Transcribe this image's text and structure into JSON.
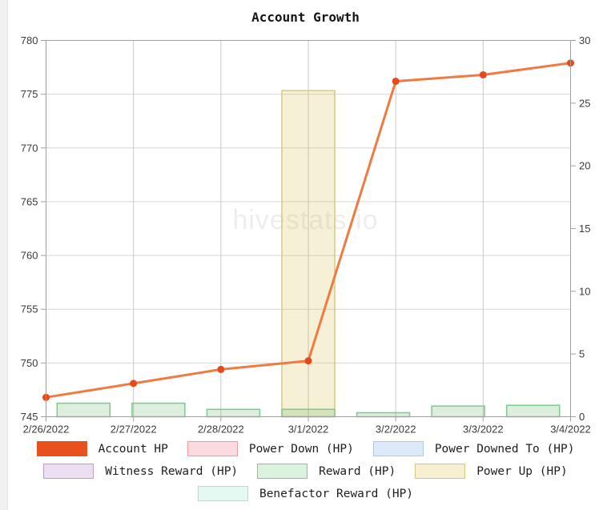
{
  "page": {
    "watermark": "hivestats.io"
  },
  "chart_data": {
    "type": "combo (line + bar)",
    "title": "Account Growth",
    "watermark": "hivestats.io",
    "x_labels": [
      "2/26/2022",
      "2/27/2022",
      "2/28/2022",
      "3/1/2022",
      "3/2/2022",
      "3/3/2022",
      "3/4/2022"
    ],
    "left_axis": {
      "min": 745,
      "max": 780,
      "step": 5,
      "tick_labels": [
        "780",
        "775",
        "770",
        "765",
        "760",
        "755",
        "750",
        "745"
      ]
    },
    "right_axis": {
      "min": 0,
      "max": 30,
      "step": 5,
      "tick_labels": [
        "30",
        "25",
        "20",
        "15",
        "10",
        "5",
        "0"
      ]
    },
    "grid": true,
    "legend_position": "bottom",
    "series": [
      {
        "name": "Account HP",
        "type": "line",
        "axis": "left",
        "line_color": "#ef7b42",
        "point_color": "#e64a19",
        "swatch_fill": "#e8511e",
        "swatch_border": "#e8511e",
        "values": [
          746.8,
          748.1,
          749.4,
          750.2,
          776.2,
          776.8,
          777.9
        ]
      },
      {
        "name": "Power Down (HP)",
        "type": "bar",
        "axis": "right",
        "fill": "rgba(229,115,125,0.2)",
        "border": "#ee9aa2",
        "swatch_fill": "#fbdbe0",
        "swatch_border": "#ee9aa2",
        "values": [
          0,
          0,
          0,
          0,
          0,
          0,
          0
        ]
      },
      {
        "name": "Power Downed To (HP)",
        "type": "bar",
        "axis": "right",
        "fill": "rgba(100,150,220,0.2)",
        "border": "#aac8ec",
        "swatch_fill": "#dce9f9",
        "swatch_border": "#aac8ec",
        "values": [
          0,
          0,
          0,
          0,
          0,
          0,
          0
        ]
      },
      {
        "name": "Witness Reward (HP)",
        "type": "bar",
        "axis": "right",
        "fill": "rgba(150,100,170,0.18)",
        "border": "#b79fc4",
        "swatch_fill": "#ecdff2",
        "swatch_border": "#b79fc4",
        "values": [
          0,
          0,
          0,
          0,
          0,
          0,
          0
        ]
      },
      {
        "name": "Reward (HP)",
        "type": "bar",
        "axis": "right",
        "fill": "rgba(76,175,80,0.2)",
        "border": "#7dc98f",
        "swatch_fill": "#d9f3de",
        "swatch_border": "#7dc98f",
        "values": [
          1.08,
          1.08,
          0.59,
          0.59,
          0.32,
          0.85,
          0.91
        ]
      },
      {
        "name": "Power Up (HP)",
        "type": "bar",
        "axis": "right",
        "fill": "rgba(212,180,52,0.2)",
        "border": "#d8c87c",
        "swatch_fill": "#f6efd2",
        "swatch_border": "#d8c87c",
        "values": [
          0,
          0,
          0,
          26,
          0,
          0,
          0
        ]
      },
      {
        "name": "Benefactor Reward (HP)",
        "type": "bar",
        "axis": "right",
        "fill": "rgba(80,200,170,0.15)",
        "border": "#abe0d3",
        "swatch_fill": "#e4f9f2",
        "swatch_border": "#abe0d3",
        "values": [
          0,
          0,
          0,
          0,
          0,
          0,
          0
        ]
      }
    ],
    "legend": {
      "rows": [
        [
          "Account HP",
          "Power Down (HP)",
          "Power Downed To (HP)"
        ],
        [
          "Witness Reward (HP)",
          "Reward (HP)",
          "Power Up (HP)"
        ],
        [
          "Benefactor Reward (HP)"
        ]
      ]
    }
  }
}
